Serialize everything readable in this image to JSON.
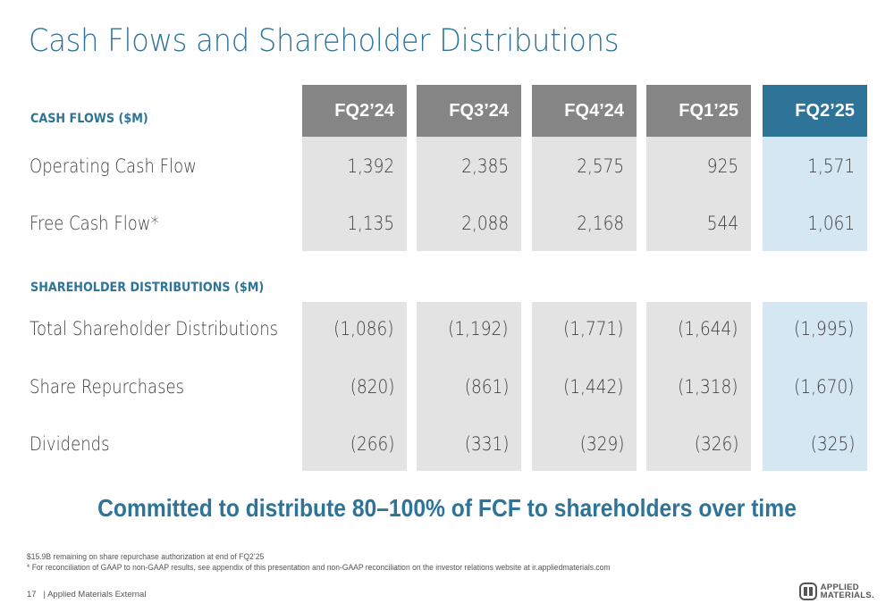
{
  "title": "Cash Flows and Shareholder Distributions",
  "sections": {
    "cash_flows_label": "CASH FLOWS ($M)",
    "distributions_label": "SHAREHOLDER DISTRIBUTIONS ($M)"
  },
  "columns": [
    "FQ2’24",
    "FQ3’24",
    "FQ4’24",
    "FQ1’25",
    "FQ2’25"
  ],
  "rows": {
    "operating_cash_flow": {
      "label": "Operating Cash Flow",
      "values": [
        "1,392",
        "2,385",
        "2,575",
        "925",
        "1,571"
      ]
    },
    "free_cash_flow": {
      "label": "Free Cash Flow*",
      "values": [
        "1,135",
        "2,088",
        "2,168",
        "544",
        "1,061"
      ]
    },
    "total_distributions": {
      "label": "Total Shareholder Distributions",
      "values": [
        "(1,086)",
        "(1,192)",
        "(1,771)",
        "(1,644)",
        "(1,995)"
      ]
    },
    "share_repurchases": {
      "label": "Share Repurchases",
      "values": [
        "(820)",
        "(861)",
        "(1,442)",
        "(1,318)",
        "(1,670)"
      ]
    },
    "dividends": {
      "label": "Dividends",
      "values": [
        "(266)",
        "(331)",
        "(329)",
        "(326)",
        "(325)"
      ]
    }
  },
  "tagline": "Committed to distribute 80–100% of FCF to shareholders over time",
  "footnotes": {
    "line1": "$15.9B remaining on share repurchase authorization at end of FQ2’25",
    "line2": "* For reconciliation of GAAP to non-GAAP results, see appendix of this presentation and non-GAAP reconciliation on the investor relations website at ir.appliedmaterials.com"
  },
  "footer": {
    "page_number": "17",
    "classification": "| Applied Materials External"
  },
  "logo": {
    "line1": "APPLIED",
    "line2": "MATERIALS."
  },
  "colors": {
    "accent": "#2e7398",
    "header_gray": "#858585",
    "cell_gray": "#e3e3e3",
    "highlight_light": "#d4e7f3"
  }
}
